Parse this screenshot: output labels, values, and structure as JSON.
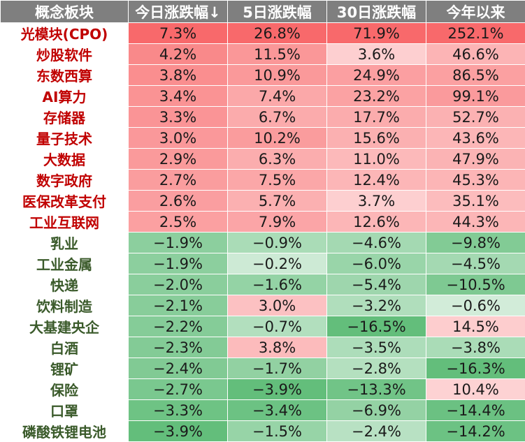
{
  "colors": {
    "header_bg": "#7f7f7f",
    "rise_name": "#c00000",
    "fall_name": "#3a5a2a",
    "max_red": "#f8696b",
    "max_green": "#63be7b"
  },
  "chart_data": {
    "type": "table",
    "columns": [
      "概念板块",
      "今日涨跌幅↓",
      "5日涨跌幅",
      "30日涨跌幅",
      "今年以来"
    ],
    "rows": [
      {
        "name": "光模块(CPO)",
        "direction": "up",
        "values": [
          "7.3%",
          "26.8%",
          "71.9%",
          "252.1%"
        ]
      },
      {
        "name": "炒股软件",
        "direction": "up",
        "values": [
          "4.2%",
          "11.5%",
          "3.6%",
          "46.6%"
        ]
      },
      {
        "name": "东数西算",
        "direction": "up",
        "values": [
          "3.8%",
          "10.9%",
          "24.9%",
          "86.5%"
        ]
      },
      {
        "name": "AI算力",
        "direction": "up",
        "values": [
          "3.4%",
          "7.4%",
          "23.2%",
          "99.1%"
        ]
      },
      {
        "name": "存储器",
        "direction": "up",
        "values": [
          "3.3%",
          "6.7%",
          "17.7%",
          "52.7%"
        ]
      },
      {
        "name": "量子技术",
        "direction": "up",
        "values": [
          "3.0%",
          "10.2%",
          "15.6%",
          "43.6%"
        ]
      },
      {
        "name": "大数据",
        "direction": "up",
        "values": [
          "2.9%",
          "6.3%",
          "11.0%",
          "47.9%"
        ]
      },
      {
        "name": "数字政府",
        "direction": "up",
        "values": [
          "2.7%",
          "7.5%",
          "12.4%",
          "45.3%"
        ]
      },
      {
        "name": "医保改革支付",
        "direction": "up",
        "values": [
          "2.6%",
          "5.7%",
          "3.7%",
          "35.1%"
        ]
      },
      {
        "name": "工业互联网",
        "direction": "up",
        "values": [
          "2.5%",
          "7.9%",
          "12.6%",
          "44.3%"
        ]
      },
      {
        "name": "乳业",
        "direction": "down",
        "values": [
          "−1.9%",
          "−0.9%",
          "−4.6%",
          "−9.8%"
        ]
      },
      {
        "name": "工业金属",
        "direction": "down",
        "values": [
          "−1.9%",
          "−0.2%",
          "−6.0%",
          "−4.5%"
        ]
      },
      {
        "name": "快递",
        "direction": "down",
        "values": [
          "−2.0%",
          "−1.6%",
          "−5.4%",
          "−10.5%"
        ]
      },
      {
        "name": "饮料制造",
        "direction": "down",
        "values": [
          "−2.1%",
          "3.0%",
          "−3.2%",
          "−0.6%"
        ]
      },
      {
        "name": "大基建央企",
        "direction": "down",
        "values": [
          "−2.2%",
          "−0.7%",
          "−16.5%",
          "14.5%"
        ]
      },
      {
        "name": "白酒",
        "direction": "down",
        "values": [
          "−2.3%",
          "3.8%",
          "−3.5%",
          "−3.8%"
        ]
      },
      {
        "name": "锂矿",
        "direction": "down",
        "values": [
          "−2.4%",
          "−1.7%",
          "−2.8%",
          "−16.3%"
        ]
      },
      {
        "name": "保险",
        "direction": "down",
        "values": [
          "−2.7%",
          "−3.9%",
          "−13.3%",
          "10.4%"
        ]
      },
      {
        "name": "口罩",
        "direction": "down",
        "values": [
          "−3.3%",
          "−3.4%",
          "−6.9%",
          "−14.4%"
        ]
      },
      {
        "name": "磷酸铁锂电池",
        "direction": "down",
        "values": [
          "−3.9%",
          "−1.5%",
          "−2.4%",
          "−14.2%"
        ]
      }
    ],
    "color_scale": "per-column heat map: red for rises, green for falls, intensity by magnitude"
  }
}
